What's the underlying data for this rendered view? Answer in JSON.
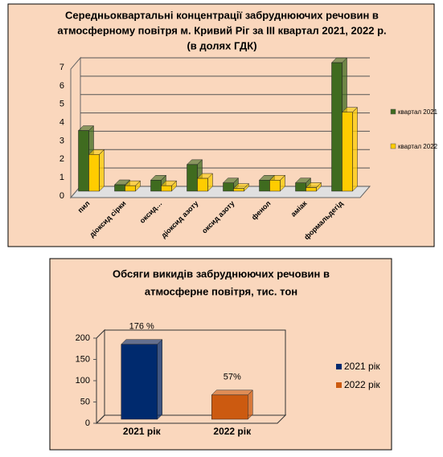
{
  "chart_data": [
    {
      "type": "bar",
      "title": [
        "Середньоквартальні концентрації забруднюючих речовин в",
        "атмосферному повітря м. Кривий Ріг за ІІІ квартал 2021,  2022 р.",
        "(в долях ГДК)"
      ],
      "categories": [
        "пил",
        "діоксид сірки",
        "оксид…",
        "діоксид  азоту",
        "оксид азоту",
        "фенол",
        "аміак",
        "формальдегід"
      ],
      "series": [
        {
          "name": "квартал 2021",
          "color": "#3f6b1f",
          "values": [
            3.3,
            0.35,
            0.6,
            1.45,
            0.45,
            0.6,
            0.45,
            7.0
          ]
        },
        {
          "name": "квартал 2022",
          "color": "#ffcc00",
          "values": [
            2.0,
            0.3,
            0.3,
            0.7,
            0.15,
            0.6,
            0.2,
            4.3
          ]
        }
      ],
      "ylim": [
        0,
        7
      ],
      "yticks": [
        0,
        1,
        2,
        3,
        4,
        5,
        6,
        7
      ],
      "grid": true
    },
    {
      "type": "bar",
      "title": [
        "Обсяги викидів забруднюючих речовин в",
        "атмосферне повітря, тис. тон"
      ],
      "categories": [
        "2021 рік",
        "2022 рік"
      ],
      "values": [
        176,
        57
      ],
      "value_labels": [
        "176 %",
        "57%"
      ],
      "colors": [
        "#002a6e",
        "#cc5a10"
      ],
      "ylim": [
        0,
        200
      ],
      "yticks": [
        0,
        50,
        100,
        150,
        200
      ],
      "grid": false
    }
  ]
}
